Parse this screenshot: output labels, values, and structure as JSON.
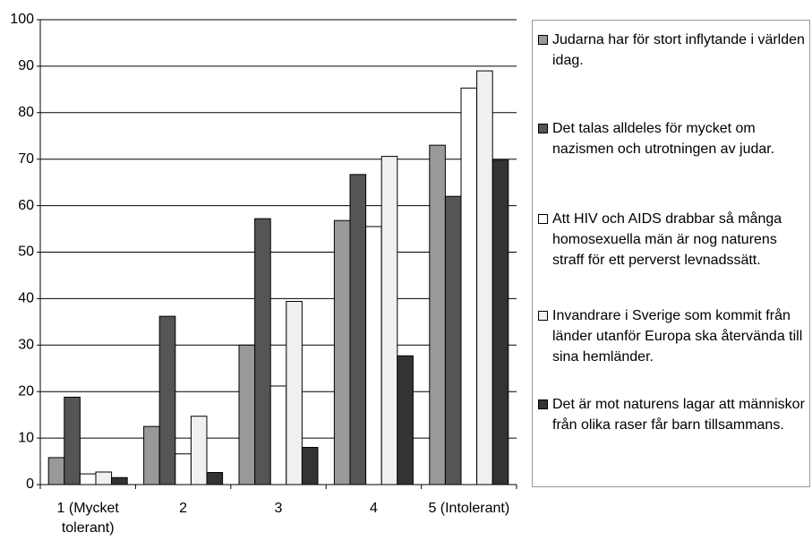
{
  "chart_data": {
    "type": "bar",
    "categories": [
      "1 (Mycket tolerant)",
      "2",
      "3",
      "4",
      "5 (Intolerant)"
    ],
    "series": [
      {
        "name": "Judarna har för stort inflytande i världen idag.",
        "color": "#999999",
        "values": [
          5.8,
          12.5,
          30,
          56.8,
          73
        ]
      },
      {
        "name": "Det talas alldeles för mycket om nazismen och utrotningen av judar.",
        "color": "#555555",
        "values": [
          18.8,
          36.2,
          57.2,
          66.7,
          62
        ]
      },
      {
        "name": "Att HIV och AIDS drabbar så många homosexuella män är nog naturens straff för ett perverst levnadssätt.",
        "color": "#ffffff",
        "values": [
          2.3,
          6.6,
          21.2,
          55.5,
          85.3
        ]
      },
      {
        "name": "Invandrare i Sverige som kommit från länder utanför Europa ska återvända till sina hemländer.",
        "color": "#f0f0f0",
        "values": [
          2.7,
          14.7,
          39.4,
          70.6,
          89
        ]
      },
      {
        "name": "Det är mot naturens lagar att människor från olika raser får barn tillsammans.",
        "color": "#333333",
        "values": [
          1.5,
          2.6,
          8,
          27.7,
          69.8
        ]
      }
    ],
    "ylim": [
      0,
      100
    ],
    "yticks": [
      0,
      10,
      20,
      30,
      40,
      50,
      60,
      70,
      80,
      90,
      100
    ],
    "grid": true,
    "legend": "right"
  }
}
